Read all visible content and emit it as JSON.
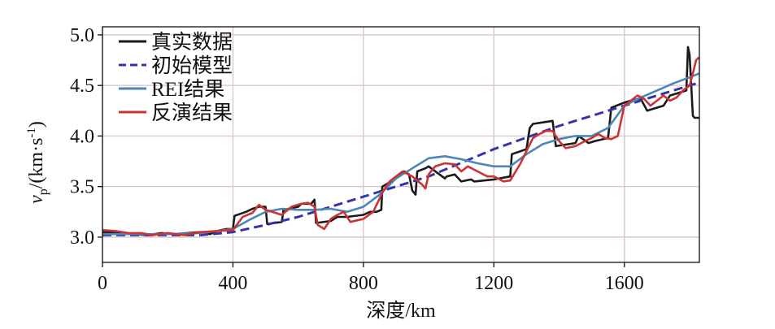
{
  "chart_data": {
    "type": "line",
    "xlabel": "深度/km",
    "ylabel_main": "v",
    "ylabel_sub": "p",
    "ylabel_unit_open": "/(km·s",
    "ylabel_unit_sup": "-1",
    "ylabel_unit_close": ")",
    "xlim": [
      0,
      1830
    ],
    "ylim": [
      2.75,
      5.08
    ],
    "xticks": [
      0,
      400,
      800,
      1200,
      1600
    ],
    "xtick_labels": [
      "0",
      "400",
      "800",
      "1200",
      "1600"
    ],
    "yticks": [
      3.0,
      3.5,
      4.0,
      4.5,
      5.0
    ],
    "ytick_labels": [
      "3.0",
      "3.5",
      "4.0",
      "4.5",
      "5.0"
    ],
    "grid": true,
    "legend_position": "top-left",
    "series": [
      {
        "name": "真实数据",
        "color": "#1a1a1a",
        "dash": "solid",
        "x": [
          0,
          60,
          100,
          140,
          180,
          220,
          260,
          300,
          330,
          350,
          380,
          400,
          405,
          440,
          460,
          480,
          500,
          505,
          550,
          555,
          600,
          610,
          640,
          650,
          655,
          700,
          720,
          745,
          750,
          800,
          820,
          840,
          855,
          858,
          900,
          925,
          940,
          950,
          960,
          965,
          990,
          1000,
          1050,
          1055,
          1080,
          1100,
          1130,
          1140,
          1200,
          1250,
          1255,
          1300,
          1310,
          1320,
          1380,
          1390,
          1430,
          1450,
          1460,
          1490,
          1510,
          1550,
          1560,
          1600,
          1620,
          1650,
          1670,
          1690,
          1720,
          1740,
          1790,
          1795,
          1800,
          1810,
          1815,
          1830
        ],
        "y": [
          3.05,
          3.04,
          3.03,
          3.02,
          3.04,
          3.03,
          3.04,
          3.05,
          3.03,
          3.06,
          3.08,
          3.08,
          3.21,
          3.25,
          3.28,
          3.3,
          3.3,
          3.13,
          3.15,
          3.27,
          3.3,
          3.33,
          3.33,
          3.37,
          3.14,
          3.16,
          3.2,
          3.2,
          3.2,
          3.22,
          3.25,
          3.25,
          3.27,
          3.5,
          3.58,
          3.65,
          3.62,
          3.46,
          3.42,
          3.65,
          3.68,
          3.7,
          3.58,
          3.6,
          3.62,
          3.55,
          3.57,
          3.55,
          3.57,
          3.6,
          3.82,
          3.87,
          4.08,
          4.12,
          4.15,
          3.9,
          3.92,
          3.93,
          4.0,
          3.93,
          3.95,
          3.98,
          4.28,
          4.33,
          4.35,
          4.37,
          4.25,
          4.27,
          4.3,
          4.4,
          4.45,
          4.88,
          4.8,
          4.2,
          4.18,
          4.18
        ]
      },
      {
        "name": "初始模型",
        "color": "#3434a8",
        "dash": "dashed",
        "x": [
          0,
          300,
          400,
          500,
          600,
          700,
          800,
          1000,
          1200,
          1400,
          1600,
          1830
        ],
        "y": [
          3.02,
          3.02,
          3.05,
          3.12,
          3.2,
          3.3,
          3.4,
          3.6,
          3.87,
          4.1,
          4.3,
          4.53
        ]
      },
      {
        "name": "REI结果",
        "color": "#4a86b8",
        "dash": "solid",
        "x": [
          0,
          100,
          200,
          300,
          400,
          450,
          500,
          550,
          600,
          650,
          700,
          750,
          800,
          850,
          900,
          950,
          1000,
          1050,
          1100,
          1150,
          1200,
          1250,
          1300,
          1350,
          1400,
          1450,
          1500,
          1550,
          1600,
          1650,
          1700,
          1750,
          1800,
          1830
        ],
        "y": [
          3.03,
          3.03,
          3.03,
          3.04,
          3.08,
          3.17,
          3.25,
          3.28,
          3.27,
          3.27,
          3.28,
          3.25,
          3.3,
          3.42,
          3.58,
          3.68,
          3.78,
          3.8,
          3.77,
          3.73,
          3.7,
          3.7,
          3.82,
          3.92,
          3.97,
          4.0,
          4.0,
          4.08,
          4.3,
          4.38,
          4.45,
          4.52,
          4.58,
          4.62
        ]
      },
      {
        "name": "反演结果",
        "color": "#cc3333",
        "dash": "solid",
        "x": [
          0,
          40,
          80,
          120,
          150,
          200,
          250,
          300,
          350,
          400,
          430,
          460,
          480,
          500,
          520,
          550,
          580,
          610,
          630,
          650,
          660,
          680,
          700,
          720,
          740,
          760,
          800,
          830,
          860,
          880,
          900,
          920,
          950,
          980,
          990,
          1000,
          1020,
          1050,
          1080,
          1100,
          1120,
          1150,
          1180,
          1200,
          1230,
          1250,
          1280,
          1300,
          1320,
          1340,
          1360,
          1380,
          1400,
          1420,
          1450,
          1480,
          1500,
          1520,
          1540,
          1560,
          1580,
          1600,
          1620,
          1640,
          1660,
          1680,
          1700,
          1720,
          1740,
          1760,
          1780,
          1800,
          1810,
          1820,
          1830
        ],
        "y": [
          3.07,
          3.06,
          3.04,
          3.04,
          3.02,
          3.04,
          3.02,
          3.05,
          3.06,
          3.07,
          3.2,
          3.24,
          3.32,
          3.27,
          3.25,
          3.22,
          3.3,
          3.33,
          3.34,
          3.3,
          3.12,
          3.08,
          3.18,
          3.22,
          3.25,
          3.15,
          3.18,
          3.25,
          3.45,
          3.55,
          3.6,
          3.65,
          3.6,
          3.52,
          3.48,
          3.62,
          3.7,
          3.73,
          3.72,
          3.65,
          3.7,
          3.65,
          3.6,
          3.6,
          3.55,
          3.56,
          3.72,
          3.85,
          3.98,
          4.02,
          4.05,
          4.05,
          3.95,
          3.88,
          3.9,
          3.95,
          3.98,
          4.02,
          3.98,
          3.97,
          4.0,
          4.3,
          4.35,
          4.4,
          4.37,
          4.3,
          4.35,
          4.4,
          4.35,
          4.38,
          4.45,
          4.5,
          4.62,
          4.75,
          4.78
        ]
      }
    ]
  }
}
